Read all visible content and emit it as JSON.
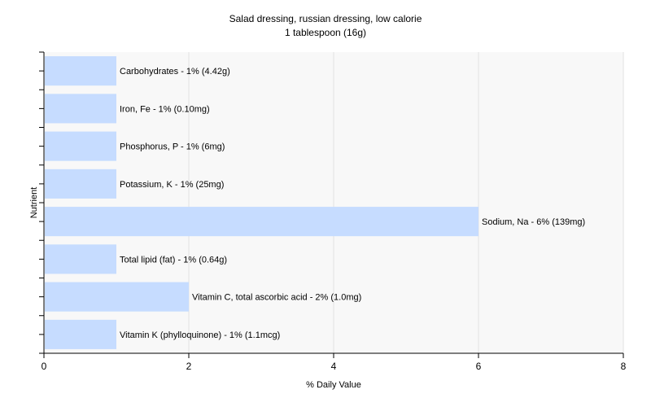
{
  "chart_data": {
    "type": "bar",
    "orientation": "horizontal",
    "title": "Salad dressing, russian dressing, low calorie",
    "subtitle": "1 tablespoon (16g)",
    "xlabel": "% Daily Value",
    "ylabel": "Nutrient",
    "xlim": [
      0,
      8
    ],
    "xticks": [
      "0",
      "2",
      "4",
      "6",
      "8"
    ],
    "grid": true,
    "bar_color": "#c6dcff",
    "categories": [
      "Carbohydrates",
      "Iron, Fe",
      "Phosphorus, P",
      "Potassium, K",
      "Sodium, Na",
      "Total lipid (fat)",
      "Vitamin C, total ascorbic acid",
      "Vitamin K (phylloquinone)"
    ],
    "values": [
      1,
      1,
      1,
      1,
      6,
      1,
      2,
      1
    ],
    "labels": [
      "Carbohydrates - 1% (4.42g)",
      "Iron, Fe - 1% (0.10mg)",
      "Phosphorus, P - 1% (6mg)",
      "Potassium, K - 1% (25mg)",
      "Sodium, Na - 6% (139mg)",
      "Total lipid (fat) - 1% (0.64g)",
      "Vitamin C, total ascorbic acid - 2% (1.0mg)",
      "Vitamin K (phylloquinone) - 1% (1.1mcg)"
    ]
  }
}
